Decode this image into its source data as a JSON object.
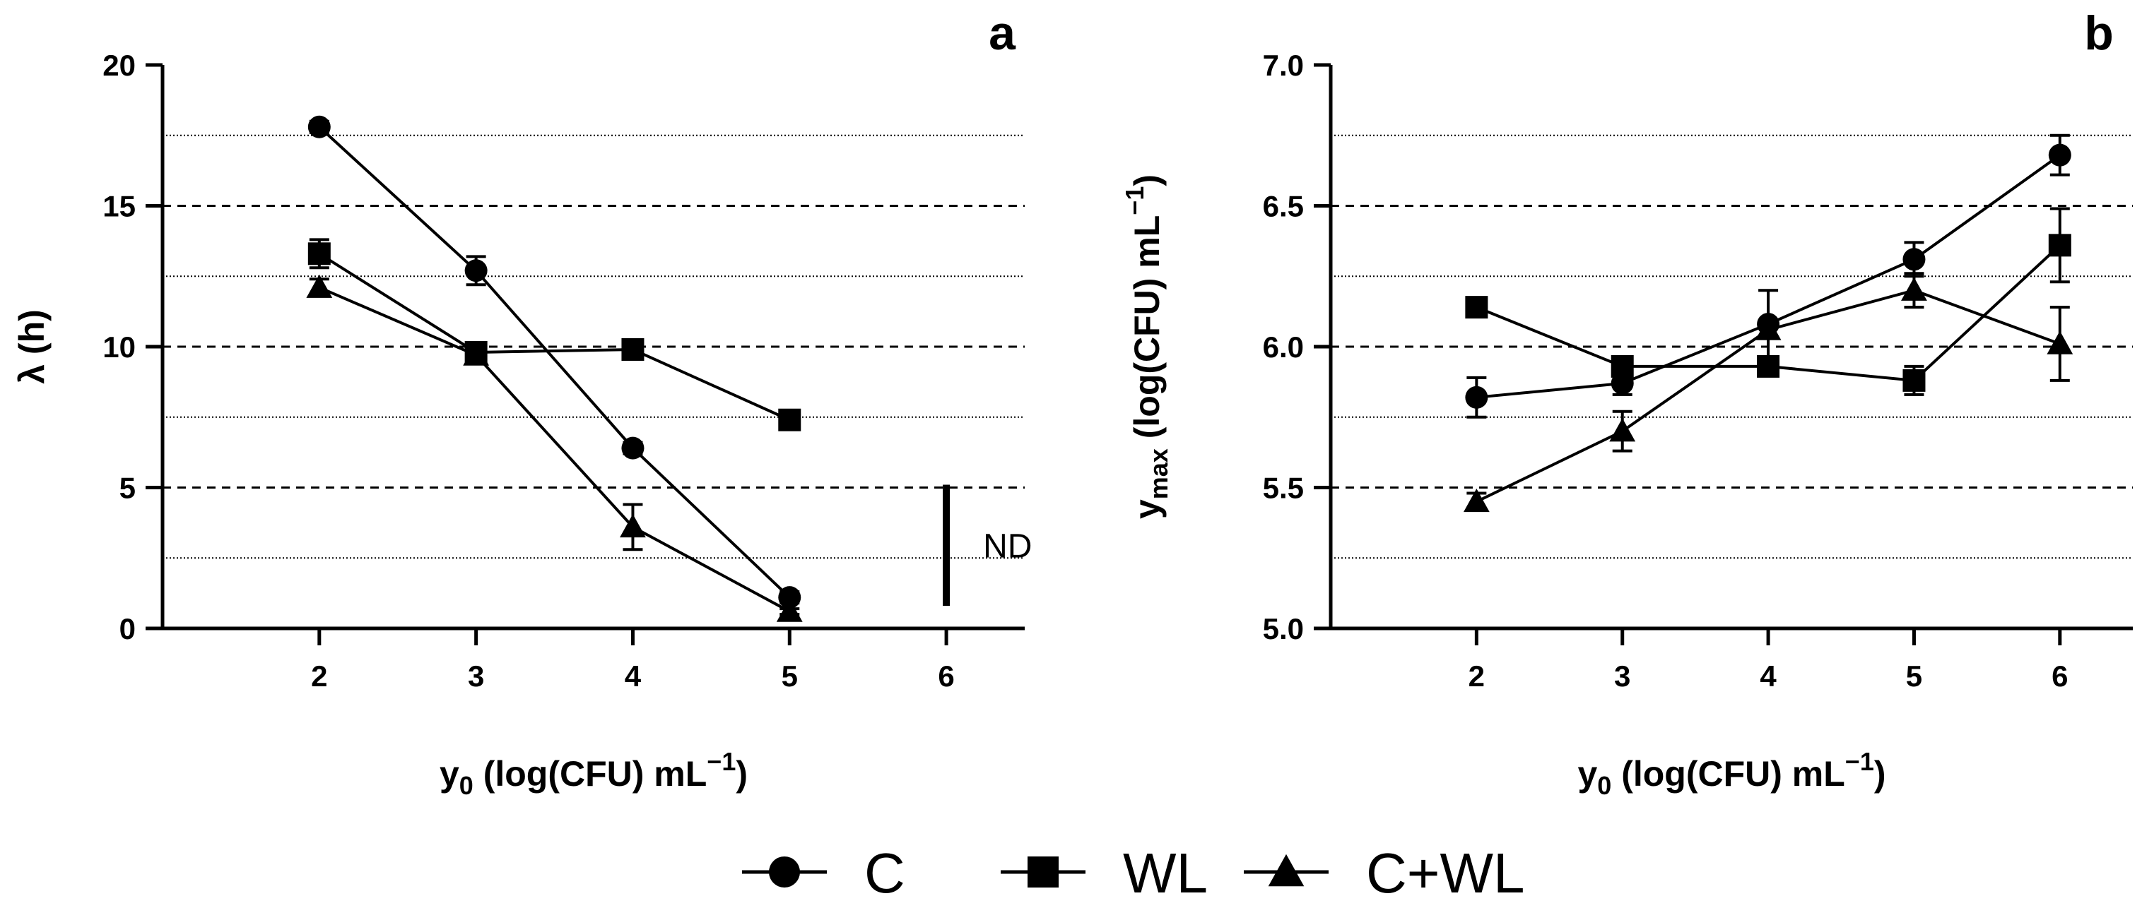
{
  "chart_data": [
    {
      "type": "line",
      "panel_label": "a",
      "xlabel": {
        "main": "y",
        "sub": "0",
        "rest": " (log(CFU) mL",
        "sup": "−1",
        "close": ")"
      },
      "ylabel": "λ (h)",
      "xlim": [
        1.0,
        6.5
      ],
      "ylim": [
        0,
        20
      ],
      "x_ticks": [
        2,
        3,
        4,
        5,
        6
      ],
      "x_tick_labels": [
        "2",
        "3",
        "4",
        "5",
        "6"
      ],
      "y_ticks": [
        0,
        5,
        10,
        15,
        20
      ],
      "y_tick_labels": [
        "0",
        "5",
        "10",
        "15",
        "20"
      ],
      "grid": {
        "dashed": [
          5,
          10,
          15
        ],
        "dotted": [
          2.5,
          7.5,
          12.5,
          17.5
        ]
      },
      "series": [
        {
          "name": "C",
          "marker": "circle",
          "x": [
            2,
            3,
            4,
            5
          ],
          "values": [
            17.8,
            12.7,
            6.4,
            1.1
          ],
          "errors": [
            0.2,
            0.5,
            0.2,
            0.2
          ]
        },
        {
          "name": "WL",
          "marker": "square",
          "x": [
            2,
            3,
            4,
            5
          ],
          "values": [
            13.3,
            9.8,
            9.9,
            7.4
          ],
          "errors": [
            0.5,
            0.3,
            0.2,
            0.2
          ]
        },
        {
          "name": "C+WL",
          "marker": "triangle",
          "x": [
            2,
            3,
            4,
            5
          ],
          "values": [
            12.1,
            9.7,
            3.6,
            0.6
          ],
          "errors": [
            0.3,
            0.2,
            0.8,
            0.1
          ]
        }
      ],
      "annotation": {
        "text": "ND",
        "x": 6,
        "y_range": [
          0.8,
          5.1
        ]
      }
    },
    {
      "type": "line",
      "panel_label": "b",
      "xlabel": {
        "main": "y",
        "sub": "0",
        "rest": " (log(CFU) mL",
        "sup": "−1",
        "close": ")"
      },
      "ylabel": {
        "main": "y",
        "sub": "max",
        "rest": " (log(CFU) mL",
        "sup": "−1",
        "close": ")"
      },
      "xlim": [
        1.0,
        6.5
      ],
      "ylim": [
        5.0,
        7.0
      ],
      "x_ticks": [
        2,
        3,
        4,
        5,
        6
      ],
      "x_tick_labels": [
        "2",
        "3",
        "4",
        "5",
        "6"
      ],
      "y_ticks": [
        5.0,
        5.5,
        6.0,
        6.5,
        7.0
      ],
      "y_tick_labels": [
        "5.0",
        "5.5",
        "6.0",
        "6.5",
        "7.0"
      ],
      "grid": {
        "dashed": [
          5.5,
          6.0,
          6.5
        ],
        "dotted": [
          5.25,
          5.75,
          6.25,
          6.75
        ]
      },
      "series": [
        {
          "name": "C",
          "marker": "circle",
          "x": [
            2,
            3,
            4,
            5,
            6
          ],
          "values": [
            5.82,
            5.87,
            6.08,
            6.31,
            6.68
          ],
          "errors": [
            0.07,
            0.04,
            0.12,
            0.06,
            0.07
          ]
        },
        {
          "name": "WL",
          "marker": "square",
          "x": [
            2,
            3,
            4,
            5,
            6
          ],
          "values": [
            6.14,
            5.93,
            5.93,
            5.88,
            6.36
          ],
          "errors": [
            0.02,
            0.03,
            0.02,
            0.05,
            0.13
          ]
        },
        {
          "name": "C+WL",
          "marker": "triangle",
          "x": [
            2,
            3,
            4,
            5,
            6
          ],
          "values": [
            5.45,
            5.7,
            6.06,
            6.2,
            6.01
          ],
          "errors": [
            0.03,
            0.07,
            0.03,
            0.06,
            0.13
          ]
        }
      ]
    }
  ],
  "legend": [
    {
      "label": "C",
      "marker": "circle"
    },
    {
      "label": "WL",
      "marker": "square"
    },
    {
      "label": "C+WL",
      "marker": "triangle"
    }
  ]
}
